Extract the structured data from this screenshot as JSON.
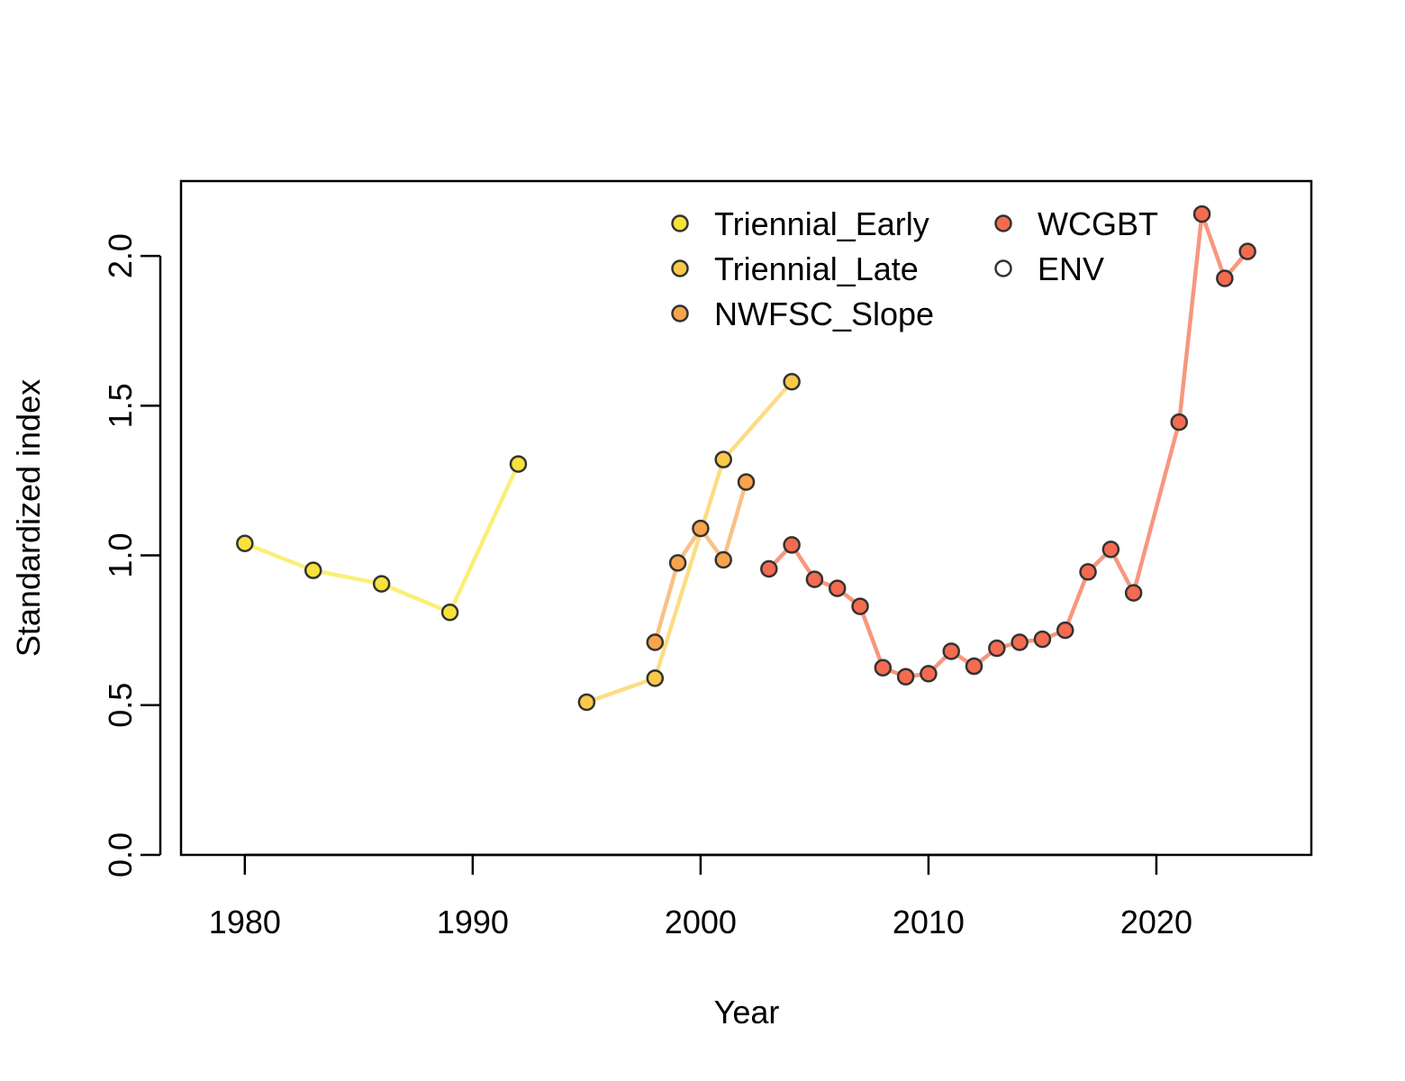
{
  "chart_data": {
    "type": "line",
    "title": "",
    "xlabel": "Year",
    "ylabel": "Standardized index",
    "xlim": [
      1977.2,
      2026.8
    ],
    "ylim": [
      0,
      2.25
    ],
    "x_ticks": [
      "1980",
      "1990",
      "2000",
      "2010",
      "2020"
    ],
    "y_ticks": [
      "0.0",
      "0.5",
      "1.0",
      "1.5",
      "2.0"
    ],
    "grid": false,
    "legend_position": "top-right",
    "series": [
      {
        "name": "Triennial_Early",
        "color": "#F7E23B",
        "line_color": "#FBEF78",
        "x": [
          1980,
          1983,
          1986,
          1989,
          1992
        ],
        "y": [
          1.04,
          0.95,
          0.905,
          0.81,
          1.305
        ]
      },
      {
        "name": "Triennial_Late",
        "color": "#FBC94A",
        "line_color": "#FCDD85",
        "x": [
          1995,
          1998,
          2001,
          2004
        ],
        "y": [
          0.51,
          0.59,
          1.32,
          1.58
        ]
      },
      {
        "name": "NWFSC_Slope",
        "color": "#F7A44A",
        "line_color": "#F9C185",
        "x": [
          1998,
          1999,
          2000,
          2001,
          2002
        ],
        "y": [
          0.71,
          0.975,
          1.09,
          0.985,
          1.245
        ]
      },
      {
        "name": "WCGBT",
        "color": "#F46B50",
        "line_color": "#F7977E",
        "x": [
          2003,
          2004,
          2005,
          2006,
          2007,
          2008,
          2009,
          2010,
          2011,
          2012,
          2013,
          2014,
          2015,
          2016,
          2017,
          2018,
          2019,
          2021,
          2022,
          2023,
          2024
        ],
        "y": [
          0.955,
          1.035,
          0.92,
          0.89,
          0.83,
          0.625,
          0.595,
          0.605,
          0.68,
          0.63,
          0.69,
          0.71,
          0.72,
          0.75,
          0.945,
          1.02,
          0.875,
          1.445,
          2.14,
          1.925,
          2.015
        ]
      },
      {
        "name": "ENV",
        "color": "#FFFFFF",
        "line_color": "#FFFFFF",
        "x": [],
        "y": []
      }
    ]
  }
}
